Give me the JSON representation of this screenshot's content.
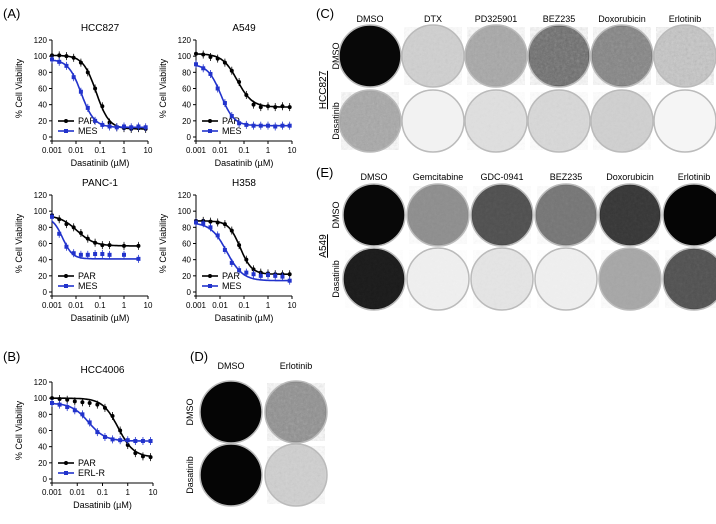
{
  "panel_labels": {
    "A": "(A)",
    "B": "(B)",
    "C": "(C)",
    "D": "(D)",
    "E": "(E)"
  },
  "chart_data": [
    {
      "type": "line",
      "title": "HCC827",
      "xlabel": "Dasatinib (µM)",
      "ylabel": "% Cell Viability",
      "xscale": "log",
      "xlim": [
        0.001,
        10
      ],
      "ylim": [
        0,
        120
      ],
      "x_ticks": [
        "0.001",
        "0.01",
        "0.1",
        "1",
        "10"
      ],
      "y_ticks": [
        "0",
        "20",
        "40",
        "60",
        "80",
        "100",
        "120"
      ],
      "legend": "bottom-left",
      "series": [
        {
          "name": "PAR",
          "color": "#000000",
          "marker": "circle",
          "x": [
            0.001,
            0.002,
            0.004,
            0.008,
            0.016,
            0.031,
            0.0625,
            0.125,
            0.25,
            0.5,
            1,
            2,
            4,
            8
          ],
          "y": [
            101,
            101,
            100,
            98,
            92,
            80,
            60,
            38,
            18,
            12,
            11,
            10,
            11,
            10
          ]
        },
        {
          "name": "MES",
          "color": "#2233cc",
          "marker": "square",
          "x": [
            0.001,
            0.002,
            0.004,
            0.008,
            0.016,
            0.031,
            0.0625,
            0.125,
            0.25,
            0.5,
            1,
            2,
            4,
            8
          ],
          "y": [
            96,
            93,
            88,
            74,
            56,
            36,
            20,
            15,
            13,
            12,
            13,
            12,
            13,
            12
          ]
        }
      ]
    },
    {
      "type": "line",
      "title": "A549",
      "xlabel": "Dasatinib (µM)",
      "ylabel": "% Cell Viability",
      "xscale": "log",
      "xlim": [
        0.001,
        10
      ],
      "ylim": [
        0,
        120
      ],
      "x_ticks": [
        "0.001",
        "0.01",
        "0.1",
        "1",
        "10"
      ],
      "y_ticks": [
        "0",
        "20",
        "40",
        "60",
        "80",
        "100",
        "120"
      ],
      "legend": "bottom-left",
      "series": [
        {
          "name": "PAR",
          "color": "#000000",
          "marker": "circle",
          "x": [
            0.001,
            0.002,
            0.004,
            0.008,
            0.016,
            0.031,
            0.0625,
            0.125,
            0.25,
            0.5,
            1,
            2,
            4,
            8
          ],
          "y": [
            103,
            102,
            99,
            97,
            92,
            82,
            68,
            52,
            40,
            37,
            38,
            37,
            38,
            37
          ]
        },
        {
          "name": "MES",
          "color": "#2233cc",
          "marker": "square",
          "x": [
            0.001,
            0.002,
            0.004,
            0.008,
            0.016,
            0.031,
            0.0625,
            0.125,
            0.25,
            0.5,
            1,
            2,
            4,
            8
          ],
          "y": [
            90,
            85,
            78,
            60,
            42,
            26,
            17,
            15,
            14,
            14,
            14,
            13,
            14,
            14
          ]
        }
      ]
    },
    {
      "type": "line",
      "title": "PANC-1",
      "xlabel": "Dasatinib (µM)",
      "ylabel": "% Cell Viability",
      "xscale": "log",
      "xlim": [
        0.001,
        10
      ],
      "ylim": [
        0,
        120
      ],
      "x_ticks": [
        "0.001",
        "0.01",
        "0.1",
        "1",
        "10"
      ],
      "y_ticks": [
        "0",
        "20",
        "40",
        "60",
        "80",
        "100",
        "120"
      ],
      "legend": "bottom-left",
      "series": [
        {
          "name": "PAR",
          "color": "#000000",
          "marker": "circle",
          "x": [
            0.001,
            0.002,
            0.004,
            0.008,
            0.016,
            0.031,
            0.0625,
            0.125,
            0.25,
            1,
            4
          ],
          "y": [
            95,
            90,
            84,
            80,
            73,
            66,
            61,
            58,
            58,
            57,
            57
          ]
        },
        {
          "name": "MES",
          "color": "#2233cc",
          "marker": "square",
          "x": [
            0.001,
            0.002,
            0.004,
            0.008,
            0.016,
            0.031,
            0.0625,
            0.125,
            0.25,
            1,
            4
          ],
          "y": [
            93,
            72,
            56,
            48,
            46,
            46,
            47,
            47,
            46,
            46,
            41
          ]
        }
      ]
    },
    {
      "type": "line",
      "title": "H358",
      "xlabel": "Dasatinib (µM)",
      "ylabel": "% Cell Viability",
      "xscale": "log",
      "xlim": [
        0.001,
        10
      ],
      "ylim": [
        0,
        120
      ],
      "x_ticks": [
        "0.001",
        "0.01",
        "0.1",
        "1",
        "10"
      ],
      "y_ticks": [
        "0",
        "20",
        "40",
        "60",
        "80",
        "100",
        "120"
      ],
      "legend": "bottom-left",
      "series": [
        {
          "name": "PAR",
          "color": "#000000",
          "marker": "circle",
          "x": [
            0.001,
            0.002,
            0.004,
            0.008,
            0.016,
            0.031,
            0.0625,
            0.125,
            0.25,
            0.5,
            1,
            2,
            4,
            8
          ],
          "y": [
            88,
            88,
            87,
            86,
            84,
            76,
            58,
            40,
            28,
            24,
            23,
            22,
            22,
            22
          ]
        },
        {
          "name": "MES",
          "color": "#2233cc",
          "marker": "square",
          "x": [
            0.001,
            0.002,
            0.004,
            0.008,
            0.016,
            0.031,
            0.0625,
            0.125,
            0.25,
            0.5,
            1,
            2,
            4,
            8
          ],
          "y": [
            86,
            85,
            80,
            70,
            52,
            36,
            27,
            24,
            22,
            20,
            21,
            20,
            19,
            14
          ]
        }
      ]
    },
    {
      "type": "line",
      "title": "HCC4006",
      "xlabel": "Dasatinib (µM)",
      "ylabel": "% Cell Viability",
      "xscale": "log",
      "xlim": [
        0.001,
        10
      ],
      "ylim": [
        0,
        120
      ],
      "x_ticks": [
        "0.001",
        "0.01",
        "0.1",
        "1",
        "10"
      ],
      "y_ticks": [
        "0",
        "20",
        "40",
        "60",
        "80",
        "100",
        "120"
      ],
      "legend": "bottom-left",
      "series": [
        {
          "name": "PAR",
          "color": "#000000",
          "marker": "circle",
          "x": [
            0.001,
            0.002,
            0.004,
            0.008,
            0.016,
            0.031,
            0.0625,
            0.125,
            0.25,
            0.5,
            1,
            2,
            4,
            8
          ],
          "y": [
            100,
            99,
            98,
            96,
            95,
            94,
            92,
            88,
            78,
            60,
            42,
            32,
            28,
            27
          ]
        },
        {
          "name": "ERL-R",
          "color": "#2233cc",
          "marker": "square",
          "x": [
            0.001,
            0.002,
            0.004,
            0.008,
            0.016,
            0.031,
            0.0625,
            0.125,
            0.25,
            0.5,
            1,
            2,
            4,
            8
          ],
          "y": [
            94,
            92,
            89,
            85,
            80,
            70,
            58,
            52,
            49,
            48,
            48,
            47,
            47,
            47
          ]
        }
      ]
    }
  ],
  "panel_C": {
    "columns": [
      "DMSO",
      "DTX",
      "PD325901",
      "BEZ235",
      "Doxorubicin",
      "Erlotinib"
    ],
    "rows": [
      "DMSO",
      "Dasatinib"
    ],
    "cell_line": "HCC827",
    "wells": [
      [
        {
          "dark": 0.97,
          "speckle": 0.0
        },
        {
          "dark": 0.18,
          "speckle": 0.4
        },
        {
          "dark": 0.35,
          "speckle": 0.6
        },
        {
          "dark": 0.6,
          "speckle": 0.8
        },
        {
          "dark": 0.5,
          "speckle": 0.7
        },
        {
          "dark": 0.22,
          "speckle": 0.9
        }
      ],
      [
        {
          "dark": 0.35,
          "speckle": 0.7
        },
        {
          "dark": 0.05,
          "speckle": 0.0
        },
        {
          "dark": 0.12,
          "speckle": 0.2
        },
        {
          "dark": 0.15,
          "speckle": 0.3
        },
        {
          "dark": 0.18,
          "speckle": 0.3
        },
        {
          "dark": 0.04,
          "speckle": 0.0
        }
      ]
    ]
  },
  "panel_E": {
    "columns": [
      "DMSO",
      "Gemcitabine",
      "GDC-0941",
      "BEZ235",
      "Doxorubicin",
      "Erlotinib"
    ],
    "rows": [
      "DMSO",
      "Dasatinib"
    ],
    "cell_line": "A549",
    "wells": [
      [
        {
          "dark": 0.97,
          "speckle": 0.0
        },
        {
          "dark": 0.45,
          "speckle": 0.3
        },
        {
          "dark": 0.7,
          "speckle": 0.2
        },
        {
          "dark": 0.55,
          "speckle": 0.3
        },
        {
          "dark": 0.8,
          "speckle": 0.2
        },
        {
          "dark": 0.98,
          "speckle": 0.0
        }
      ],
      [
        {
          "dark": 0.9,
          "speckle": 0.1
        },
        {
          "dark": 0.06,
          "speckle": 0.1
        },
        {
          "dark": 0.1,
          "speckle": 0.2
        },
        {
          "dark": 0.06,
          "speckle": 0.1
        },
        {
          "dark": 0.35,
          "speckle": 0.3
        },
        {
          "dark": 0.7,
          "speckle": 0.3
        }
      ]
    ]
  },
  "panel_D": {
    "columns": [
      "DMSO",
      "Erlotinib"
    ],
    "rows": [
      "DMSO",
      "Dasatinib"
    ],
    "wells": [
      [
        {
          "dark": 0.98,
          "speckle": 0.0
        },
        {
          "dark": 0.45,
          "speckle": 0.8
        }
      ],
      [
        {
          "dark": 0.98,
          "speckle": 0.0
        },
        {
          "dark": 0.18,
          "speckle": 0.5
        }
      ]
    ]
  }
}
